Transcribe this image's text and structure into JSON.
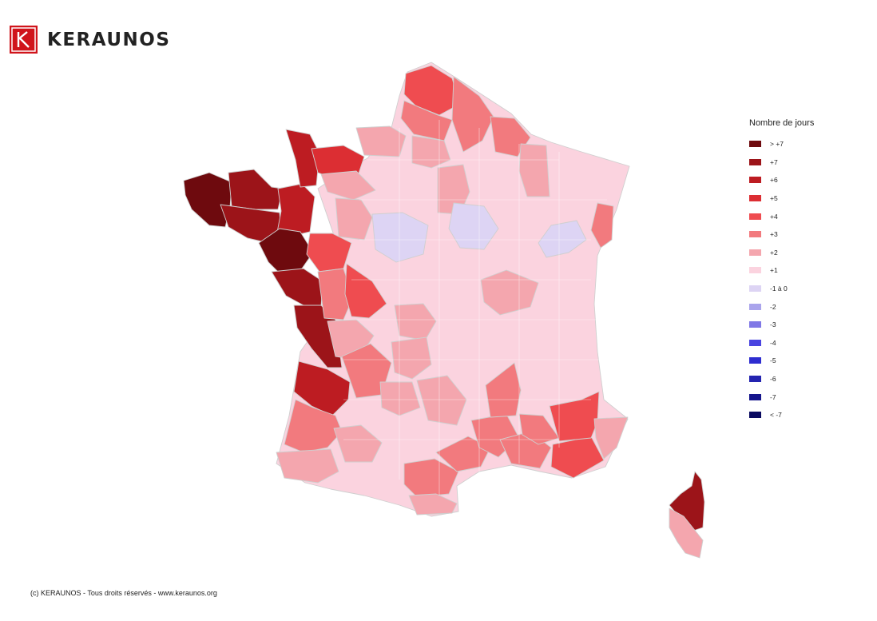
{
  "brand": {
    "name": "KERAUNOS",
    "color": "#d0141b"
  },
  "legend": {
    "title": "Nombre de jours",
    "items": [
      {
        "label": "> +7",
        "color": "#6e0a0e"
      },
      {
        "label": "+7",
        "color": "#9c1419"
      },
      {
        "label": "+6",
        "color": "#bd1c22"
      },
      {
        "label": "+5",
        "color": "#dc2e33"
      },
      {
        "label": "+4",
        "color": "#ef4c50"
      },
      {
        "label": "+3",
        "color": "#f27a7e"
      },
      {
        "label": "+2",
        "color": "#f4a6ae"
      },
      {
        "label": "+1",
        "color": "#fbd3df"
      },
      {
        "label": "-1 à 0",
        "color": "#ddd4f4"
      },
      {
        "label": "-2",
        "color": "#aaa4ec"
      },
      {
        "label": "-3",
        "color": "#8078e6"
      },
      {
        "label": "-4",
        "color": "#4a44e0"
      },
      {
        "label": "-5",
        "color": "#2e2dd0"
      },
      {
        "label": "-6",
        "color": "#2424b0"
      },
      {
        "label": "-7",
        "color": "#15158c"
      },
      {
        "label": "< -7",
        "color": "#0a0a60"
      }
    ]
  },
  "map": {
    "regions": [
      {
        "name": "Nord-Pas-de-Calais",
        "class": "+4"
      },
      {
        "name": "Aisne-Ardennes",
        "class": "+3"
      },
      {
        "name": "Manche",
        "class": "+5"
      },
      {
        "name": "Calvados",
        "class": "+5"
      },
      {
        "name": "Finistère",
        "class": "> +7"
      },
      {
        "name": "Côtes-d'Armor",
        "class": "+6"
      },
      {
        "name": "Morbihan",
        "class": "+6"
      },
      {
        "name": "Ille-et-Vilaine",
        "class": "+5"
      },
      {
        "name": "Loire-Atlantique",
        "class": "> +7"
      },
      {
        "name": "Vendée",
        "class": "+6"
      },
      {
        "name": "Charente-Maritime",
        "class": "+7"
      },
      {
        "name": "Gironde",
        "class": "+6"
      },
      {
        "name": "Landes",
        "class": "+3"
      },
      {
        "name": "Pyrénées-Atlantiques",
        "class": "+2"
      },
      {
        "name": "Sarthe",
        "class": "+4"
      },
      {
        "name": "Indre-et-Loire",
        "class": "+4"
      },
      {
        "name": "Dordogne",
        "class": "+3"
      },
      {
        "name": "Ariège-Aude",
        "class": "+3"
      },
      {
        "name": "Hérault-Gard",
        "class": "+3"
      },
      {
        "name": "Bouches-du-Rhône-Vaucluse",
        "class": "+3"
      },
      {
        "name": "Var",
        "class": "+4"
      },
      {
        "name": "Alpes-de-Haute-Provence",
        "class": "+4"
      },
      {
        "name": "Alpes-Maritimes",
        "class": "+2"
      },
      {
        "name": "Ardèche",
        "class": "+3"
      },
      {
        "name": "Haut-Rhin",
        "class": "+3"
      },
      {
        "name": "Saône-et-Loire",
        "class": "+2"
      },
      {
        "name": "Loiret",
        "class": "-1 à 0"
      },
      {
        "name": "Yonne",
        "class": "-1 à 0"
      },
      {
        "name": "Haute-Saône",
        "class": "-1 à 0"
      },
      {
        "name": "Corse-du-Sud",
        "class": "+2"
      },
      {
        "name": "Haute-Corse",
        "class": "+7"
      }
    ]
  },
  "footer": {
    "copyright": "(c) KERAUNOS - Tous droits réservés - www.keraunos.org"
  }
}
